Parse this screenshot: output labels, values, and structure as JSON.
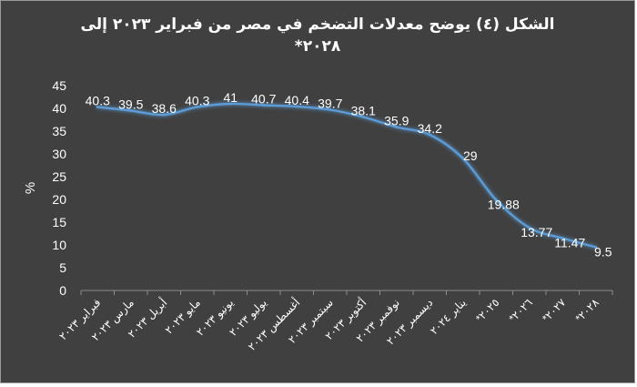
{
  "chart_data": {
    "type": "line",
    "title": "الشكل (٤) يوضح معدلات التضخم في مصر من فبراير ٢٠٢٣ إلى ٢٠٢٨*",
    "ylabel": "%",
    "xlabel": "",
    "ylim": [
      0,
      45
    ],
    "yticks": [
      0,
      5,
      10,
      15,
      20,
      25,
      30,
      35,
      40,
      45
    ],
    "grid": false,
    "legend": "none",
    "colors": {
      "background": "#404040",
      "line": "#5b9bd5",
      "text": "#ffffff"
    },
    "categories": [
      "فبراير ٢٠٢٣",
      "مارس ٢٠٢٣",
      "أبريل ٢٠٢٣",
      "مايو ٢٠٢٣",
      "يونيو ٢٠٢٣",
      "يوليو ٢٠٢٣",
      "أغسطس ٢٠٢٣",
      "سبتمبر ٢٠٢٣",
      "أكتوبر ٢٠٢٣",
      "نوفمبر ٢٠٢٣",
      "ديسمبر ٢٠٢٣",
      "يناير ٢٠٢٤",
      "*٢٠٢٥",
      "*٢٠٢٦",
      "*٢٠٢٧",
      "*٢٠٢٨"
    ],
    "values": [
      40.3,
      39.5,
      38.6,
      40.3,
      41,
      40.7,
      40.4,
      39.7,
      38.1,
      35.9,
      34.2,
      29,
      19.88,
      13.77,
      11.47,
      9.5
    ],
    "data_labels": [
      "40.3",
      "39.5",
      "38.6",
      "40.3",
      "41",
      "40.7",
      "40.4",
      "39.7",
      "38.1",
      "35.9",
      "34.2",
      "29",
      "19.88",
      "13.77",
      "11.47",
      "9.5"
    ]
  }
}
